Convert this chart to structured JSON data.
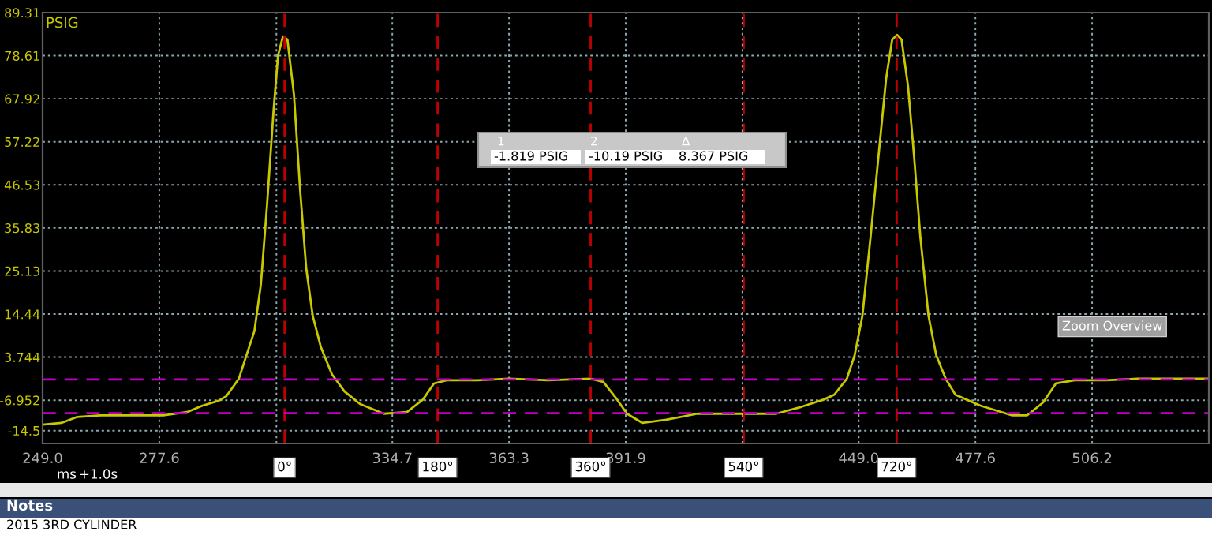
{
  "chart_data": {
    "type": "line",
    "ylabel": "PSIG",
    "xlabel": "ms",
    "x": [
      249.0,
      253.6,
      257.5,
      263.2,
      270.9,
      278.6,
      284.4,
      288.2,
      292.1,
      294.0,
      297.1,
      298.6,
      300.9,
      302.5,
      304.0,
      305.6,
      306.7,
      307.9,
      309.0,
      310.6,
      312.1,
      313.6,
      315.2,
      317.2,
      319.9,
      323.0,
      326.8,
      332.6,
      338.3,
      342.2,
      344.9,
      348.0,
      355.6,
      363.3,
      372.9,
      383.3,
      386.4,
      389.5,
      392.2,
      396.0,
      401.8,
      409.5,
      421.1,
      428.8,
      434.6,
      440.4,
      443.0,
      446.1,
      448.0,
      449.9,
      451.9,
      453.8,
      455.7,
      457.2,
      458.4,
      459.5,
      461.1,
      462.6,
      464.1,
      466.1,
      468.0,
      470.3,
      472.7,
      478.8,
      486.5,
      490.3,
      494.2,
      497.3,
      501.9,
      509.6,
      517.3,
      525.0,
      534.8
    ],
    "series": [
      {
        "color": "#c8c800",
        "values": [
          -13.0,
          -12.6,
          -11.1,
          -10.7,
          -10.7,
          -10.7,
          -9.9,
          -8.3,
          -7.1,
          -6.0,
          -1.6,
          3.1,
          10.2,
          21.9,
          41.5,
          65.0,
          78.7,
          83.4,
          82.6,
          68.9,
          45.4,
          25.8,
          14.0,
          6.2,
          -0.5,
          -4.8,
          -7.9,
          -10.3,
          -9.9,
          -6.8,
          -2.8,
          -2.0,
          -2.0,
          -1.6,
          -2.0,
          -1.6,
          -2.4,
          -6.4,
          -10.3,
          -12.6,
          -11.8,
          -10.3,
          -10.3,
          -10.3,
          -8.7,
          -6.8,
          -5.6,
          -1.6,
          4.2,
          14.0,
          33.6,
          53.2,
          72.8,
          82.6,
          83.8,
          82.6,
          70.9,
          53.2,
          33.6,
          14.0,
          4.2,
          -1.6,
          -5.6,
          -8.3,
          -10.7,
          -10.7,
          -7.5,
          -2.8,
          -2.0,
          -2.0,
          -1.6,
          -1.6,
          -1.6
        ]
      }
    ],
    "xlim": [
      249.0,
      534.8
    ],
    "ylim": [
      -17.7,
      89.31
    ],
    "xticks": [
      {
        "value": 249.0,
        "label": "249.0"
      },
      277.6,
      {
        "value": 306.3,
        "label": null
      },
      334.7,
      363.3,
      391.9,
      {
        "value": 420.5,
        "label": null
      },
      {
        "value": 449.0,
        "label": "449.0"
      },
      477.6,
      506.2,
      {
        "value": 534.8,
        "label": null
      }
    ],
    "yticks": [
      89.31,
      78.61,
      67.92,
      57.22,
      46.53,
      35.83,
      25.13,
      14.44,
      3.744,
      -6.952,
      -14.5
    ],
    "grid": true,
    "line_style": "solid",
    "ref_lines": [
      {
        "axis": "x",
        "value": 308.3,
        "color": "#c00000",
        "line_style": "dashed"
      },
      {
        "axis": "x",
        "value": 345.8,
        "color": "#c00000",
        "line_style": "dashed"
      },
      {
        "axis": "x",
        "value": 383.3,
        "color": "#c00000",
        "line_style": "dashed"
      },
      {
        "axis": "x",
        "value": 420.8,
        "color": "#c00000",
        "line_style": "dashed"
      },
      {
        "axis": "x",
        "value": 458.3,
        "color": "#c00000",
        "line_style": "dashed"
      },
      {
        "axis": "y",
        "value": -1.819,
        "color": "#c000c0",
        "line_style": "dashed"
      },
      {
        "axis": "y",
        "value": -10.19,
        "color": "#c000c0",
        "line_style": "dashed"
      }
    ],
    "annotations": [
      {
        "text": "0°",
        "x": 308.3,
        "y": -17.7
      },
      {
        "text": "180°",
        "x": 345.8,
        "y": -17.7
      },
      {
        "text": "360°",
        "x": 383.3,
        "y": -17.7
      },
      {
        "text": "540°",
        "x": 420.8,
        "y": -17.7
      },
      {
        "text": "720°",
        "x": 458.3,
        "y": -17.7
      },
      "1",
      "2",
      "Δ",
      "-1.819 PSIG",
      "-10.19 PSIG",
      "8.367 PSIG",
      "Zoom Overview",
      "+1.0s",
      "Notes",
      "2015 3RD CYLINDER"
    ]
  }
}
